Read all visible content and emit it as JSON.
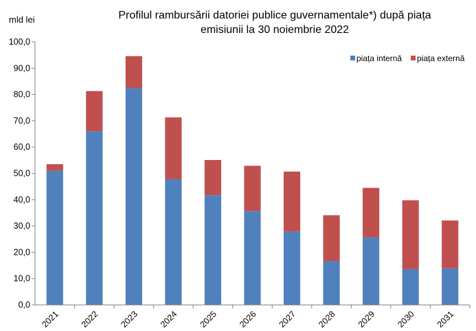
{
  "chart_data": {
    "type": "bar",
    "stacked": true,
    "title_lines": [
      "Profilul  rambursării datoriei publice guvernamentale*) după piața",
      "emisiunii la 30 noiembrie 2022"
    ],
    "ylabel": "mld lei",
    "xlabel": "",
    "categories": [
      "2021",
      "2022",
      "2023",
      "2024",
      "2025",
      "2026",
      "2027",
      "2028",
      "2029",
      "2030",
      "2031"
    ],
    "series": [
      {
        "name": "piața internă",
        "color": "#4f81bd",
        "values": [
          51.0,
          66.0,
          82.4,
          47.8,
          41.7,
          35.7,
          27.9,
          16.7,
          25.7,
          13.6,
          13.9
        ]
      },
      {
        "name": "piața externă",
        "color": "#c0504d",
        "values": [
          2.5,
          15.3,
          12.2,
          23.5,
          13.4,
          17.2,
          22.8,
          17.4,
          18.8,
          26.2,
          18.2
        ]
      }
    ],
    "ylim": [
      0,
      100
    ],
    "yticks": [
      "0,0",
      "10,0",
      "20,0",
      "30,0",
      "40,0",
      "50,0",
      "60,0",
      "70,0",
      "80,0",
      "90,0",
      "100,0"
    ],
    "grid": false,
    "legend_position": "top-right"
  }
}
